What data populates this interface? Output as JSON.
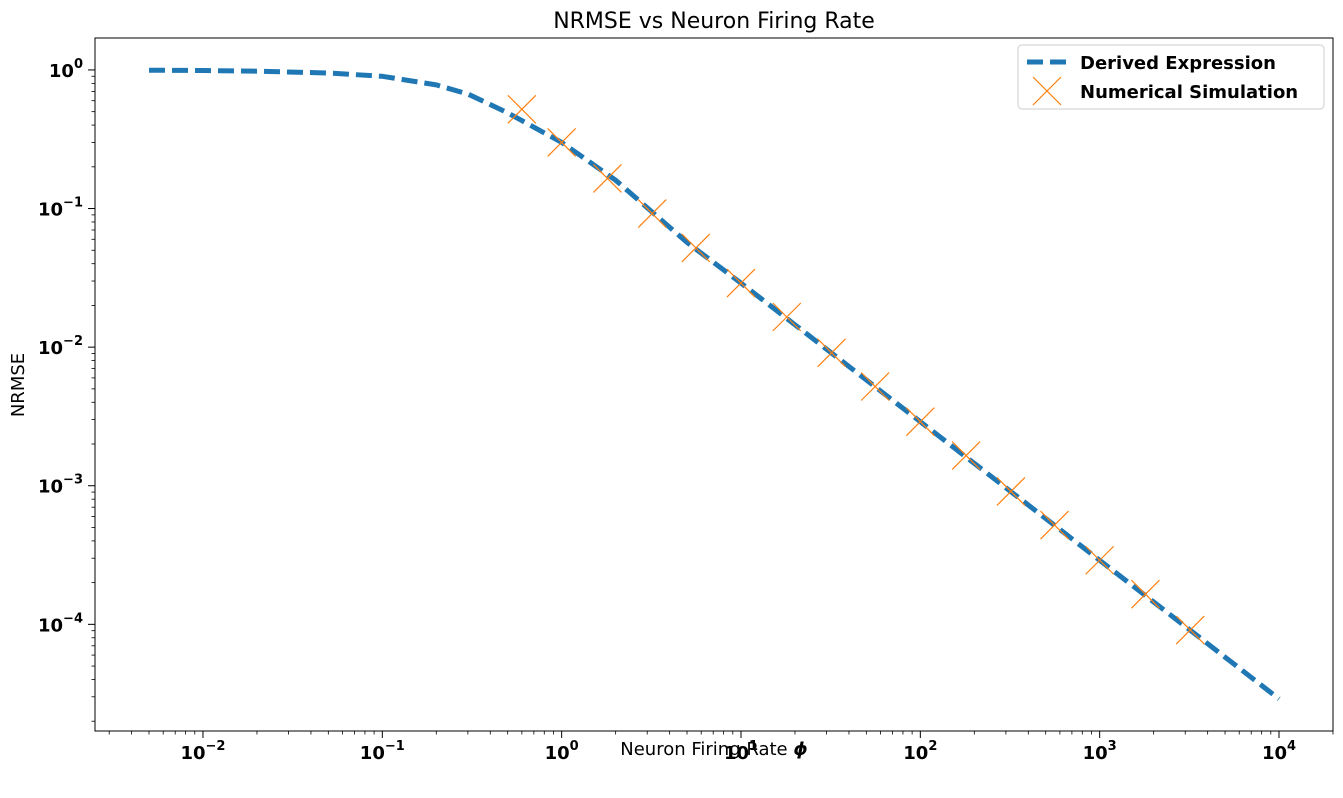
{
  "chart_data": {
    "type": "line",
    "title": "NRMSE vs Neuron Firing Rate",
    "xlabel": "Neuron Firing Rate",
    "xlabel_symbol": "ϕ",
    "ylabel": "NRMSE",
    "xscale": "log",
    "yscale": "log",
    "xlim": [
      0.0025,
      20000
    ],
    "ylim": [
      1.7e-05,
      1.7
    ],
    "x_ticks": [
      {
        "base": "10",
        "exp": "−2"
      },
      {
        "base": "10",
        "exp": "−1"
      },
      {
        "base": "10",
        "exp": "0"
      },
      {
        "base": "10",
        "exp": "1"
      },
      {
        "base": "10",
        "exp": "2"
      },
      {
        "base": "10",
        "exp": "3"
      },
      {
        "base": "10",
        "exp": "4"
      }
    ],
    "y_ticks": [
      {
        "base": "10",
        "exp": "0"
      },
      {
        "base": "10",
        "exp": "−1"
      },
      {
        "base": "10",
        "exp": "−2"
      },
      {
        "base": "10",
        "exp": "−3"
      },
      {
        "base": "10",
        "exp": "−4"
      }
    ],
    "grid": false,
    "legend_position": "top-right",
    "series": [
      {
        "name": "Derived Expression",
        "style": "dashed-line",
        "color": "#1f77b4",
        "x": [
          0.005,
          0.01,
          0.02,
          0.05,
          0.1,
          0.2,
          0.3,
          0.5,
          1,
          2,
          5,
          10,
          20,
          50,
          100,
          200,
          500,
          1000,
          2000,
          5000,
          10000
        ],
        "y": [
          0.995,
          0.99,
          0.98,
          0.95,
          0.9,
          0.78,
          0.67,
          0.49,
          0.3,
          0.16,
          0.057,
          0.029,
          0.0145,
          0.0058,
          0.0029,
          0.00145,
          0.00058,
          0.00029,
          0.000145,
          5.8e-05,
          2.9e-05
        ]
      },
      {
        "name": "Numerical Simulation",
        "style": "x-markers",
        "color": "#ff7f0e",
        "x": [
          0.6,
          1.0,
          1.8,
          3.2,
          5.6,
          10,
          18,
          32,
          56,
          100,
          180,
          320,
          560,
          1000,
          1800,
          3200
        ],
        "y": [
          0.52,
          0.3,
          0.165,
          0.092,
          0.052,
          0.029,
          0.0165,
          0.0091,
          0.0052,
          0.0029,
          0.00165,
          0.00091,
          0.00052,
          0.00029,
          0.000165,
          9.1e-05
        ]
      }
    ]
  }
}
